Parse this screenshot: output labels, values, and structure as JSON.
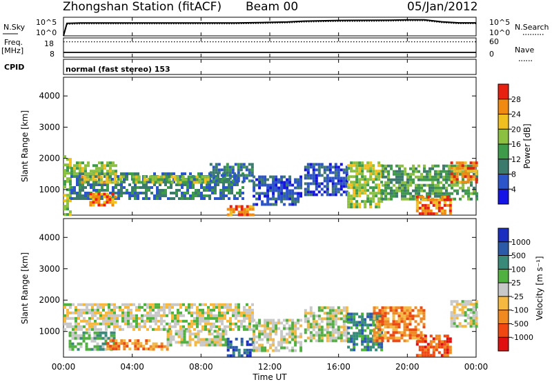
{
  "header": {
    "station": "Zhongshan Station (fitACF)",
    "beam": "Beam 00",
    "date": "05/Jan/2012",
    "mode": "normal (fast stereo) 153"
  },
  "labels": {
    "nsky": "N.Sky",
    "nsearch": "N.Search",
    "freq_top": "Freq.",
    "freq_unit": "[MHz]",
    "cpid": "CPID",
    "nave": "Nave",
    "slant_range": "Slant Range [km]",
    "time_ut": "Time UT",
    "power": "Power [dB]",
    "velocity": "Velocity [m s⁻¹]"
  },
  "ticks": {
    "noise_left": [
      "10^5",
      "10^0"
    ],
    "noise_right": [
      "10^5",
      "10^0"
    ],
    "freq_left": [
      "18",
      "8"
    ],
    "freq_right": [
      "60",
      "0"
    ],
    "range": [
      "1000",
      "2000",
      "3000",
      "4000"
    ],
    "time": [
      "00:00",
      "04:00",
      "08:00",
      "12:00",
      "16:00",
      "20:00",
      "00:00"
    ],
    "power_scale": [
      "4",
      "8",
      "12",
      "16",
      "20",
      "24",
      "28"
    ],
    "velocity_scale": [
      "-1000",
      "-500",
      "-100",
      "-25",
      "25",
      "100",
      "500",
      "1000"
    ]
  },
  "colors": {
    "power": [
      "#1414e6",
      "#2b55c8",
      "#3c7a6e",
      "#3d9b4a",
      "#8cc040",
      "#f0c020",
      "#f08a10",
      "#e82010"
    ],
    "velocity": [
      "#e01010",
      "#f04810",
      "#f08a20",
      "#f5b840",
      "#c8c8c8",
      "#50b040",
      "#3a8a7a",
      "#2c5aa8",
      "#1a2fc0"
    ]
  },
  "chart_data": [
    {
      "type": "line",
      "panel": "noise",
      "x_range_hours": [
        0,
        24
      ],
      "series": [
        {
          "name": "N.Sky",
          "x": [
            0,
            0.2,
            1,
            3,
            6,
            9,
            10,
            11,
            12,
            13,
            14,
            16,
            18,
            19,
            20,
            21,
            22,
            23,
            24
          ],
          "y": [
            1,
            2300,
            2900,
            2900,
            2900,
            2900,
            3000,
            3500,
            4200,
            5200,
            9000,
            14000,
            15000,
            17000,
            20000,
            21000,
            6000,
            3200,
            3200
          ]
        },
        {
          "name": "N.Search",
          "x": [
            0,
            0.2,
            1,
            3,
            6,
            9,
            10,
            11,
            12,
            13,
            14,
            16,
            18,
            19,
            20,
            21,
            22,
            23,
            24
          ],
          "y": [
            1,
            1300,
            1600,
            1600,
            1600,
            1600,
            1700,
            2000,
            2400,
            3000,
            5000,
            7500,
            8000,
            9000,
            11000,
            11000,
            3500,
            1800,
            1800
          ]
        }
      ]
    },
    {
      "type": "line",
      "panel": "frequency-nave",
      "x_range_hours": [
        0,
        24
      ],
      "series": [
        {
          "name": "Freq. [MHz]",
          "x": [
            0,
            24
          ],
          "y": [
            10.5,
            10.5
          ]
        },
        {
          "name": "Nave",
          "x": [
            0,
            24
          ],
          "y": [
            48,
            48
          ]
        }
      ]
    },
    {
      "type": "heatmap",
      "panel": "power",
      "xlabel": "Time UT",
      "ylabel": "Slant Range [km]",
      "x_range_hours": [
        0,
        24
      ],
      "ylim_km": [
        180,
        4600
      ],
      "colorbar_label": "Power [dB]",
      "colorbar_range": [
        0,
        30
      ],
      "bands": [
        {
          "t0": 0,
          "t1": 0.4,
          "r0": 200,
          "r1": 2100,
          "level": 4
        },
        {
          "t0": 0.4,
          "t1": 10.5,
          "r0": 700,
          "r1": 1550,
          "level": 2
        },
        {
          "t0": 0.4,
          "t1": 3.0,
          "r0": 1500,
          "r1": 1900,
          "level": 4
        },
        {
          "t0": 1.0,
          "t1": 3.5,
          "r0": 1200,
          "r1": 1450,
          "level": 5
        },
        {
          "t0": 1.5,
          "t1": 3.0,
          "r0": 500,
          "r1": 900,
          "level": 6
        },
        {
          "t0": 4.0,
          "t1": 8.5,
          "r0": 1250,
          "r1": 1450,
          "level": 4
        },
        {
          "t0": 8.5,
          "t1": 11.0,
          "r0": 1250,
          "r1": 1850,
          "level": 2
        },
        {
          "t0": 9.5,
          "t1": 11.0,
          "r0": 200,
          "r1": 500,
          "level": 6
        },
        {
          "t0": 11.0,
          "t1": 13.8,
          "r0": 500,
          "r1": 1450,
          "level": 1
        },
        {
          "t0": 14.0,
          "t1": 16.5,
          "r0": 800,
          "r1": 1850,
          "level": 1
        },
        {
          "t0": 16.5,
          "t1": 18.5,
          "r0": 400,
          "r1": 1900,
          "level": 4
        },
        {
          "t0": 18.5,
          "t1": 24.0,
          "r0": 700,
          "r1": 1800,
          "level": 3
        },
        {
          "t0": 20.5,
          "t1": 22.5,
          "r0": 200,
          "r1": 800,
          "level": 6
        },
        {
          "t0": 22.5,
          "t1": 24.0,
          "r0": 1200,
          "r1": 1900,
          "level": 6
        }
      ]
    },
    {
      "type": "heatmap",
      "panel": "velocity",
      "xlabel": "Time UT",
      "ylabel": "Slant Range [km]",
      "x_range_hours": [
        0,
        24
      ],
      "ylim_km": [
        180,
        4600
      ],
      "colorbar_label": "Velocity [m s⁻¹]",
      "colorbar_range": [
        -1000,
        1000
      ],
      "bands": [
        {
          "t0": 0,
          "t1": 11.0,
          "r0": 1100,
          "r1": 1900,
          "level": 4
        },
        {
          "t0": 0.3,
          "t1": 3.0,
          "r0": 400,
          "r1": 1000,
          "level": 5
        },
        {
          "t0": 2.5,
          "t1": 5.0,
          "r0": 400,
          "r1": 750,
          "level": 2
        },
        {
          "t0": 5.0,
          "t1": 6.0,
          "r0": 450,
          "r1": 650,
          "level": 2
        },
        {
          "t0": 6.0,
          "t1": 9.5,
          "r0": 600,
          "r1": 1050,
          "level": 4
        },
        {
          "t0": 9.5,
          "t1": 11.0,
          "r0": 200,
          "r1": 800,
          "level": 7
        },
        {
          "t0": 11.0,
          "t1": 13.8,
          "r0": 400,
          "r1": 1400,
          "level": 4
        },
        {
          "t0": 14.0,
          "t1": 16.5,
          "r0": 700,
          "r1": 1800,
          "level": 4
        },
        {
          "t0": 16.5,
          "t1": 18.5,
          "r0": 400,
          "r1": 1600,
          "level": 6
        },
        {
          "t0": 18.0,
          "t1": 21.0,
          "r0": 700,
          "r1": 1800,
          "level": 2
        },
        {
          "t0": 20.5,
          "t1": 22.5,
          "r0": 200,
          "r1": 900,
          "level": 1
        },
        {
          "t0": 22.5,
          "t1": 24.0,
          "r0": 1200,
          "r1": 2000,
          "level": 4
        }
      ]
    }
  ]
}
